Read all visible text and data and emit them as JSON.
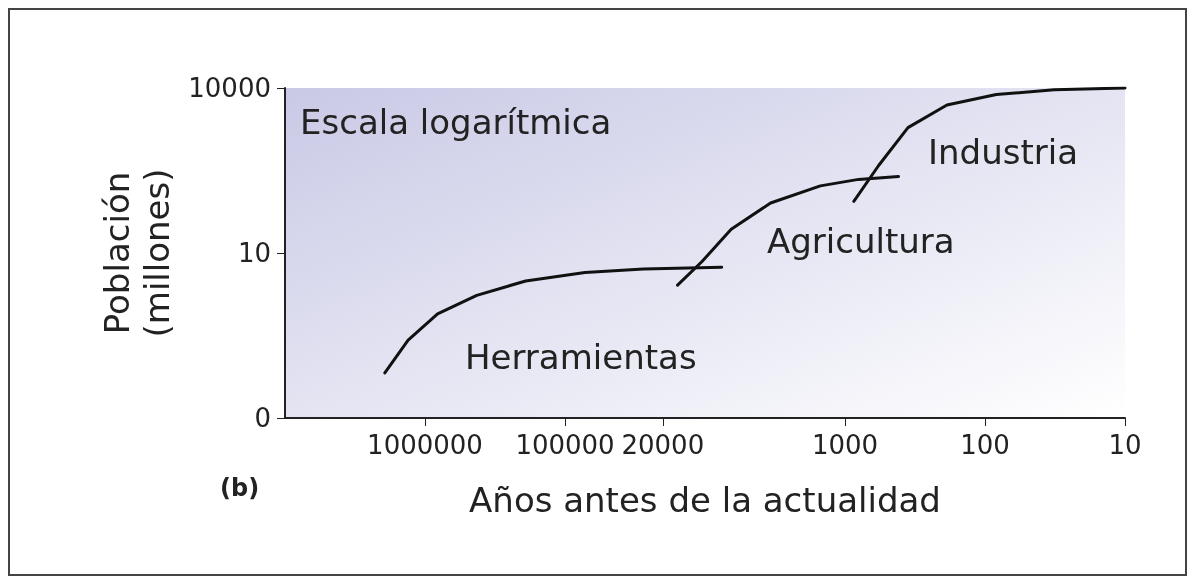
{
  "chart_data": {
    "type": "line",
    "xlabel": "Años antes de la actualidad",
    "ylabel": "Población\n(millones)",
    "log": "xy",
    "xlim": [
      10000000,
      10
    ],
    "xticks": [
      1000000,
      100000,
      20000,
      1000,
      100,
      10
    ],
    "ylim": [
      0.01,
      10000
    ],
    "yticks": [
      {
        "value": 0.01,
        "label": "0"
      },
      10,
      10000
    ],
    "grid": false,
    "marker": "none",
    "line_style": "solid",
    "series": [
      {
        "color": "#111111",
        "x": [
          1936000,
          1320000,
          813000,
          427000,
          191000,
          72000,
          27500,
          7600
        ],
        "values": [
          0.066,
          0.26,
          0.78,
          1.7,
          3.1,
          4.4,
          5.1,
          5.5
        ]
      },
      {
        "color": "#111111",
        "x": [
          15700,
          10500,
          6500,
          3400,
          1500,
          800,
          415
        ],
        "values": [
          2.6,
          7,
          27,
          81,
          166,
          218,
          245
        ]
      },
      {
        "color": "#111111",
        "x": [
          865,
          575,
          355,
          187,
          83,
          32,
          10
        ],
        "values": [
          87,
          390,
          1900,
          4900,
          7600,
          9300,
          10000
        ]
      }
    ],
    "annotations": [
      "Escala logarítmica",
      "(b)",
      "Herramientas",
      "Agricultura",
      "Industria"
    ]
  }
}
